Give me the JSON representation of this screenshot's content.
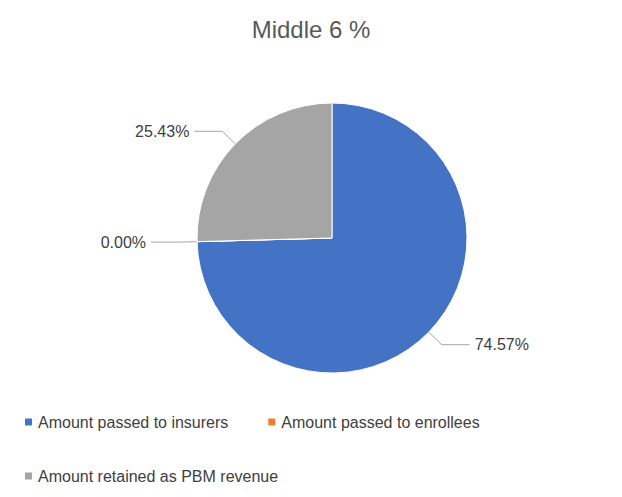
{
  "chart_data": {
    "type": "pie",
    "title": "Middle 6 %",
    "categories": [
      "Amount passed to insurers",
      "Amount passed to enrollees",
      "Amount retained as PBM revenue"
    ],
    "values": [
      74.57,
      0.0,
      25.43
    ],
    "value_labels": [
      "74.57%",
      "0.00%",
      "25.43%"
    ],
    "colors": [
      "#4472c4",
      "#ed7d31",
      "#a5a5a5"
    ],
    "data_labels": true,
    "legend": "bottom"
  }
}
